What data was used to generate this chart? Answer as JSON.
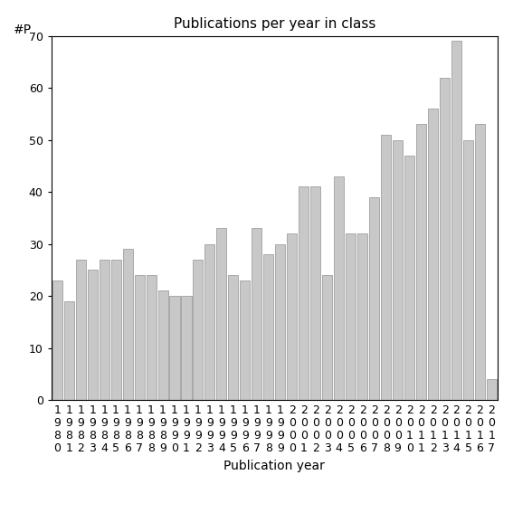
{
  "title": "Publications per year in class",
  "xlabel": "Publication year",
  "ylabel": "#P",
  "bar_color": "#c8c8c8",
  "bar_edge_color": "#a0a0a0",
  "background_color": "#ffffff",
  "years": [
    1980,
    1981,
    1982,
    1983,
    1984,
    1985,
    1986,
    1987,
    1988,
    1989,
    1990,
    1991,
    1992,
    1993,
    1994,
    1995,
    1996,
    1997,
    1998,
    1999,
    2000,
    2001,
    2002,
    2003,
    2004,
    2005,
    2006,
    2007,
    2008,
    2009,
    2010,
    2011,
    2012,
    2013,
    2014,
    2015,
    2016,
    2017
  ],
  "values": [
    23,
    19,
    27,
    25,
    27,
    27,
    29,
    24,
    24,
    21,
    20,
    20,
    27,
    30,
    33,
    24,
    23,
    33,
    28,
    30,
    32,
    41,
    41,
    24,
    43,
    32,
    32,
    39,
    51,
    50,
    47,
    53,
    56,
    62,
    69,
    50,
    53,
    4
  ],
  "ylim": [
    0,
    70
  ],
  "yticks": [
    0,
    10,
    20,
    30,
    40,
    50,
    60,
    70
  ],
  "title_fontsize": 11,
  "axis_fontsize": 9,
  "label_fontsize": 10,
  "tick_fontsize": 9
}
